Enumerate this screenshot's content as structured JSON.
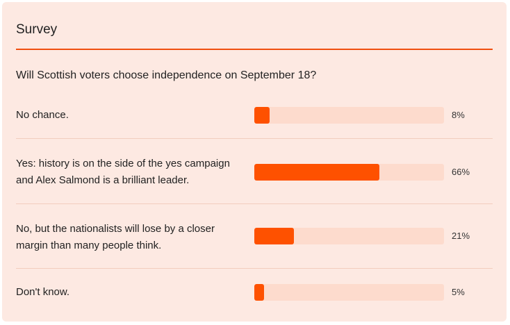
{
  "survey": {
    "title": "Survey",
    "question": "Will Scottish voters choose independence on September 18?",
    "accent_color": "#fe5100",
    "track_color": "#fddbcd",
    "options": [
      {
        "label": "No chance.",
        "percent_label": "8%",
        "value": 8
      },
      {
        "label": "Yes: history is on the side of the yes campaign\nand Alex Salmond is a brilliant leader.",
        "percent_label": "66%",
        "value": 66
      },
      {
        "label": "No, but the nationalists will lose by a closer\nmargin than many people think.",
        "percent_label": "21%",
        "value": 21
      },
      {
        "label": "Don't know.",
        "percent_label": "5%",
        "value": 5
      }
    ]
  }
}
